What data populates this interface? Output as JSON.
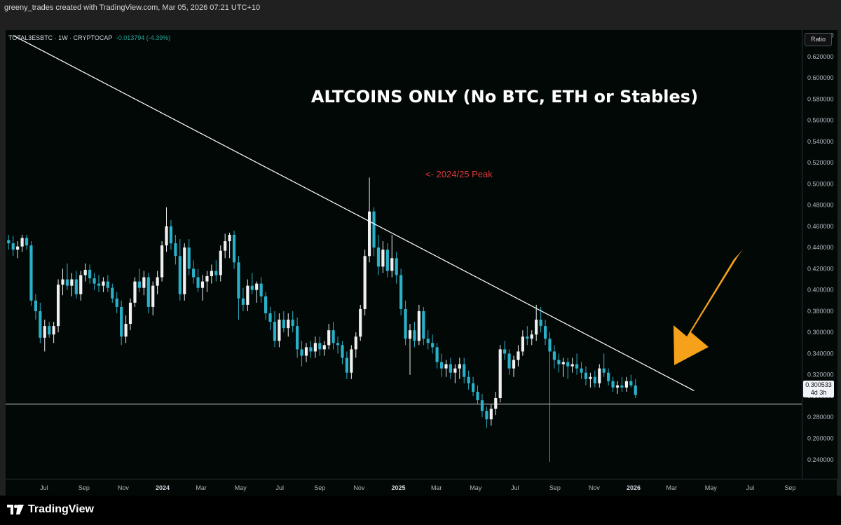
{
  "header": {
    "text": "greeny_trades created with TradingView.com, Mar 05, 2026 07:21 UTC+10"
  },
  "symbol": {
    "name": "TOTAL3ESBTC · 1W · CRYPTOCAP",
    "change": "-0.013794 (-4.39%)"
  },
  "scale_mode": "Ratio",
  "current_price": {
    "value": "0.300533",
    "countdown": "4d 3h",
    "line_level": 0.2925
  },
  "brand": "TradingView",
  "colors": {
    "up": "#f0f0f0",
    "down": "#2ab0c8",
    "arrow": "#f5a11a",
    "peak_label": "#e2373c",
    "trendline": "#ffffff"
  },
  "chart_data": {
    "type": "candlestick",
    "title": "ALTCOINS ONLY (No BTC, ETH or Stables)",
    "annotations": [
      {
        "text": "<- 2024/25 Peak",
        "color": "#e2373c"
      }
    ],
    "y_axis": {
      "scale": "ratio",
      "ticks": [
        "0.640000",
        "0.620000",
        "0.600000",
        "0.580000",
        "0.560000",
        "0.540000",
        "0.520000",
        "0.500000",
        "0.480000",
        "0.460000",
        "0.440000",
        "0.420000",
        "0.400000",
        "0.380000",
        "0.360000",
        "0.340000",
        "0.320000",
        "0.300000",
        "0.280000",
        "0.260000",
        "0.240000"
      ],
      "range": [
        0.222,
        0.645
      ]
    },
    "x_axis": {
      "ticks": [
        {
          "label": "May",
          "date": "2023-05-01",
          "bold": false
        },
        {
          "label": "Jul",
          "date": "2023-07-01",
          "bold": false
        },
        {
          "label": "Sep",
          "date": "2023-09-01",
          "bold": false
        },
        {
          "label": "Nov",
          "date": "2023-11-01",
          "bold": false
        },
        {
          "label": "2024",
          "date": "2024-01-01",
          "bold": true
        },
        {
          "label": "Mar",
          "date": "2024-03-01",
          "bold": false
        },
        {
          "label": "May",
          "date": "2024-05-01",
          "bold": false
        },
        {
          "label": "Jul",
          "date": "2024-07-01",
          "bold": false
        },
        {
          "label": "Sep",
          "date": "2024-09-01",
          "bold": false
        },
        {
          "label": "Nov",
          "date": "2024-11-01",
          "bold": false
        },
        {
          "label": "2025",
          "date": "2025-01-01",
          "bold": true
        },
        {
          "label": "Mar",
          "date": "2025-03-01",
          "bold": false
        },
        {
          "label": "May",
          "date": "2025-05-01",
          "bold": false
        },
        {
          "label": "Jul",
          "date": "2025-07-01",
          "bold": false
        },
        {
          "label": "Sep",
          "date": "2025-09-01",
          "bold": false
        },
        {
          "label": "Nov",
          "date": "2025-11-01",
          "bold": false
        },
        {
          "label": "2026",
          "date": "2026-01-01",
          "bold": true
        },
        {
          "label": "Mar",
          "date": "2026-03-01",
          "bold": false
        },
        {
          "label": "May",
          "date": "2026-05-01",
          "bold": false
        },
        {
          "label": "Jul",
          "date": "2026-07-01",
          "bold": false
        },
        {
          "label": "Sep",
          "date": "2026-09-01",
          "bold": false
        }
      ]
    },
    "series_start": "2023-05-07",
    "candles": [
      [
        0.447,
        0.452,
        0.438,
        0.444
      ],
      [
        0.444,
        0.451,
        0.432,
        0.438
      ],
      [
        0.438,
        0.446,
        0.43,
        0.441
      ],
      [
        0.441,
        0.452,
        0.436,
        0.449
      ],
      [
        0.449,
        0.452,
        0.438,
        0.442
      ],
      [
        0.442,
        0.446,
        0.385,
        0.39
      ],
      [
        0.39,
        0.396,
        0.372,
        0.38
      ],
      [
        0.38,
        0.388,
        0.35,
        0.355
      ],
      [
        0.355,
        0.372,
        0.342,
        0.366
      ],
      [
        0.366,
        0.37,
        0.355,
        0.358
      ],
      [
        0.358,
        0.37,
        0.35,
        0.366
      ],
      [
        0.366,
        0.41,
        0.36,
        0.405
      ],
      [
        0.405,
        0.42,
        0.395,
        0.41
      ],
      [
        0.41,
        0.425,
        0.4,
        0.404
      ],
      [
        0.404,
        0.416,
        0.394,
        0.41
      ],
      [
        0.41,
        0.418,
        0.392,
        0.396
      ],
      [
        0.396,
        0.418,
        0.39,
        0.414
      ],
      [
        0.414,
        0.425,
        0.408,
        0.419
      ],
      [
        0.419,
        0.424,
        0.406,
        0.411
      ],
      [
        0.411,
        0.416,
        0.4,
        0.406
      ],
      [
        0.406,
        0.414,
        0.398,
        0.404
      ],
      [
        0.404,
        0.412,
        0.398,
        0.408
      ],
      [
        0.408,
        0.414,
        0.398,
        0.402
      ],
      [
        0.402,
        0.406,
        0.388,
        0.392
      ],
      [
        0.392,
        0.398,
        0.378,
        0.384
      ],
      [
        0.384,
        0.39,
        0.348,
        0.356
      ],
      [
        0.356,
        0.376,
        0.35,
        0.368
      ],
      [
        0.368,
        0.392,
        0.362,
        0.388
      ],
      [
        0.388,
        0.412,
        0.384,
        0.408
      ],
      [
        0.408,
        0.42,
        0.398,
        0.402
      ],
      [
        0.402,
        0.418,
        0.395,
        0.412
      ],
      [
        0.412,
        0.416,
        0.378,
        0.384
      ],
      [
        0.384,
        0.408,
        0.376,
        0.404
      ],
      [
        0.404,
        0.418,
        0.396,
        0.412
      ],
      [
        0.412,
        0.446,
        0.408,
        0.442
      ],
      [
        0.442,
        0.478,
        0.436,
        0.46
      ],
      [
        0.46,
        0.466,
        0.438,
        0.444
      ],
      [
        0.444,
        0.452,
        0.424,
        0.432
      ],
      [
        0.432,
        0.448,
        0.39,
        0.396
      ],
      [
        0.396,
        0.444,
        0.39,
        0.44
      ],
      [
        0.44,
        0.448,
        0.414,
        0.42
      ],
      [
        0.42,
        0.428,
        0.406,
        0.412
      ],
      [
        0.412,
        0.42,
        0.398,
        0.402
      ],
      [
        0.402,
        0.414,
        0.39,
        0.408
      ],
      [
        0.408,
        0.418,
        0.398,
        0.413
      ],
      [
        0.413,
        0.424,
        0.406,
        0.418
      ],
      [
        0.418,
        0.428,
        0.408,
        0.414
      ],
      [
        0.414,
        0.442,
        0.408,
        0.437
      ],
      [
        0.437,
        0.453,
        0.43,
        0.446
      ],
      [
        0.446,
        0.454,
        0.43,
        0.452
      ],
      [
        0.452,
        0.456,
        0.42,
        0.426
      ],
      [
        0.426,
        0.432,
        0.372,
        0.392
      ],
      [
        0.392,
        0.402,
        0.38,
        0.386
      ],
      [
        0.386,
        0.41,
        0.38,
        0.404
      ],
      [
        0.404,
        0.416,
        0.396,
        0.4
      ],
      [
        0.4,
        0.408,
        0.388,
        0.406
      ],
      [
        0.406,
        0.412,
        0.388,
        0.394
      ],
      [
        0.394,
        0.398,
        0.372,
        0.378
      ],
      [
        0.378,
        0.384,
        0.362,
        0.37
      ],
      [
        0.37,
        0.38,
        0.346,
        0.352
      ],
      [
        0.352,
        0.378,
        0.346,
        0.372
      ],
      [
        0.372,
        0.38,
        0.36,
        0.364
      ],
      [
        0.364,
        0.378,
        0.356,
        0.372
      ],
      [
        0.372,
        0.38,
        0.36,
        0.366
      ],
      [
        0.366,
        0.374,
        0.336,
        0.344
      ],
      [
        0.344,
        0.352,
        0.328,
        0.338
      ],
      [
        0.338,
        0.35,
        0.332,
        0.346
      ],
      [
        0.346,
        0.352,
        0.336,
        0.342
      ],
      [
        0.342,
        0.356,
        0.336,
        0.35
      ],
      [
        0.35,
        0.356,
        0.338,
        0.344
      ],
      [
        0.344,
        0.352,
        0.338,
        0.348
      ],
      [
        0.348,
        0.368,
        0.344,
        0.362
      ],
      [
        0.362,
        0.37,
        0.344,
        0.35
      ],
      [
        0.35,
        0.356,
        0.34,
        0.348
      ],
      [
        0.348,
        0.352,
        0.33,
        0.336
      ],
      [
        0.336,
        0.342,
        0.316,
        0.322
      ],
      [
        0.322,
        0.348,
        0.316,
        0.344
      ],
      [
        0.344,
        0.36,
        0.336,
        0.356
      ],
      [
        0.356,
        0.386,
        0.352,
        0.382
      ],
      [
        0.382,
        0.438,
        0.376,
        0.432
      ],
      [
        0.432,
        0.506,
        0.426,
        0.474
      ],
      [
        0.474,
        0.478,
        0.432,
        0.44
      ],
      [
        0.44,
        0.452,
        0.414,
        0.422
      ],
      [
        0.422,
        0.446,
        0.416,
        0.438
      ],
      [
        0.438,
        0.444,
        0.412,
        0.418
      ],
      [
        0.418,
        0.452,
        0.412,
        0.43
      ],
      [
        0.43,
        0.436,
        0.406,
        0.414
      ],
      [
        0.414,
        0.42,
        0.376,
        0.382
      ],
      [
        0.382,
        0.39,
        0.348,
        0.354
      ],
      [
        0.354,
        0.368,
        0.32,
        0.362
      ],
      [
        0.362,
        0.37,
        0.346,
        0.352
      ],
      [
        0.352,
        0.386,
        0.348,
        0.38
      ],
      [
        0.38,
        0.384,
        0.348,
        0.354
      ],
      [
        0.354,
        0.362,
        0.344,
        0.35
      ],
      [
        0.35,
        0.358,
        0.34,
        0.346
      ],
      [
        0.346,
        0.35,
        0.326,
        0.332
      ],
      [
        0.332,
        0.34,
        0.318,
        0.326
      ],
      [
        0.326,
        0.334,
        0.318,
        0.33
      ],
      [
        0.33,
        0.336,
        0.316,
        0.322
      ],
      [
        0.322,
        0.33,
        0.312,
        0.326
      ],
      [
        0.326,
        0.336,
        0.316,
        0.33
      ],
      [
        0.33,
        0.336,
        0.312,
        0.318
      ],
      [
        0.318,
        0.324,
        0.306,
        0.312
      ],
      [
        0.312,
        0.318,
        0.3,
        0.304
      ],
      [
        0.304,
        0.31,
        0.292,
        0.296
      ],
      [
        0.296,
        0.302,
        0.28,
        0.286
      ],
      [
        0.286,
        0.29,
        0.27,
        0.278
      ],
      [
        0.278,
        0.292,
        0.272,
        0.288
      ],
      [
        0.288,
        0.304,
        0.282,
        0.298
      ],
      [
        0.298,
        0.348,
        0.294,
        0.344
      ],
      [
        0.344,
        0.352,
        0.334,
        0.34
      ],
      [
        0.34,
        0.344,
        0.32,
        0.326
      ],
      [
        0.326,
        0.338,
        0.318,
        0.334
      ],
      [
        0.334,
        0.348,
        0.328,
        0.342
      ],
      [
        0.342,
        0.362,
        0.338,
        0.356
      ],
      [
        0.356,
        0.366,
        0.348,
        0.354
      ],
      [
        0.354,
        0.362,
        0.348,
        0.358
      ],
      [
        0.358,
        0.386,
        0.352,
        0.372
      ],
      [
        0.372,
        0.384,
        0.36,
        0.366
      ],
      [
        0.366,
        0.372,
        0.348,
        0.354
      ],
      [
        0.354,
        0.36,
        0.238,
        0.342
      ],
      [
        0.342,
        0.348,
        0.326,
        0.334
      ],
      [
        0.334,
        0.34,
        0.322,
        0.33
      ],
      [
        0.33,
        0.336,
        0.318,
        0.332
      ],
      [
        0.332,
        0.336,
        0.316,
        0.328
      ],
      [
        0.328,
        0.336,
        0.322,
        0.33
      ],
      [
        0.33,
        0.34,
        0.32,
        0.326
      ],
      [
        0.326,
        0.332,
        0.316,
        0.322
      ],
      [
        0.322,
        0.328,
        0.31,
        0.316
      ],
      [
        0.316,
        0.322,
        0.308,
        0.318
      ],
      [
        0.318,
        0.324,
        0.308,
        0.312
      ],
      [
        0.312,
        0.33,
        0.308,
        0.326
      ],
      [
        0.326,
        0.34,
        0.318,
        0.322
      ],
      [
        0.322,
        0.326,
        0.31,
        0.314
      ],
      [
        0.314,
        0.318,
        0.304,
        0.308
      ],
      [
        0.308,
        0.314,
        0.302,
        0.31
      ],
      [
        0.31,
        0.318,
        0.304,
        0.308
      ],
      [
        0.308,
        0.318,
        0.304,
        0.314
      ],
      [
        0.314,
        0.32,
        0.308,
        0.31
      ],
      [
        0.31,
        0.316,
        0.298,
        0.301
      ]
    ],
    "trendline": {
      "from": {
        "date": "2023-05-14",
        "value": 0.64
      },
      "to": {
        "date": "2026-04-05",
        "value": 0.305
      }
    },
    "grid": false,
    "legend": "none"
  }
}
